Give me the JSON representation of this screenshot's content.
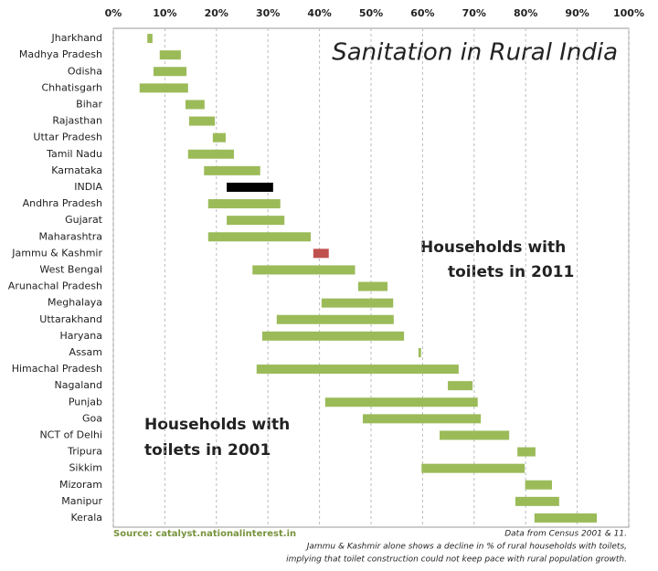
{
  "chart_data": {
    "type": "range-bar",
    "title": "Sanitation in Rural India",
    "annotations": [
      "Households with",
      "toilets in 2011",
      "Households with",
      "toilets in 2001"
    ],
    "source": "Source: catalyst.nationalinterest.in",
    "notes": [
      "Data from Census 2001 & 11.",
      "Jammu & Kashmir alone shows a decline in % of rural households with toilets,",
      "implying that toilet construction could not keep pace with rural population growth."
    ],
    "categories": [
      "Jharkhand",
      "Madhya Pradesh",
      "Odisha",
      "Chhatisgarh",
      "Bihar",
      "Rajasthan",
      "Uttar Pradesh",
      "Tamil Nadu",
      "Karnataka",
      "INDIA",
      "Andhra Pradesh",
      "Gujarat",
      "Maharashtra",
      "Jammu & Kashmir",
      "West Bengal",
      "Arunachal Pradesh",
      "Meghalaya",
      "Uttarakhand",
      "Haryana",
      "Assam",
      "Himachal Pradesh",
      "Nagaland",
      "Punjab",
      "Goa",
      "NCT of Delhi",
      "Tripura",
      "Sikkim",
      "Mizoram",
      "Manipur",
      "Kerala"
    ],
    "from": [
      6.6,
      9.0,
      7.8,
      5.1,
      14.0,
      14.7,
      19.3,
      14.5,
      17.6,
      22.0,
      18.4,
      22.0,
      18.4,
      41.8,
      27.0,
      47.5,
      40.4,
      31.7,
      28.9,
      59.2,
      27.8,
      64.9,
      41.1,
      48.4,
      63.3,
      78.4,
      59.8,
      79.9,
      78.0,
      81.7
    ],
    "to": [
      7.6,
      13.1,
      14.2,
      14.5,
      17.7,
      19.7,
      21.8,
      23.4,
      28.5,
      31.0,
      32.4,
      33.2,
      38.3,
      38.8,
      46.9,
      53.2,
      54.3,
      54.4,
      56.4,
      59.7,
      67.0,
      69.7,
      70.7,
      71.3,
      76.8,
      81.9,
      79.8,
      85.1,
      86.5,
      93.8
    ],
    "bar_colors": [
      "#9bbb59",
      "#9bbb59",
      "#9bbb59",
      "#9bbb59",
      "#9bbb59",
      "#9bbb59",
      "#9bbb59",
      "#9bbb59",
      "#9bbb59",
      "#000000",
      "#9bbb59",
      "#9bbb59",
      "#9bbb59",
      "#c0504d",
      "#9bbb59",
      "#9bbb59",
      "#9bbb59",
      "#9bbb59",
      "#9bbb59",
      "#9bbb59",
      "#9bbb59",
      "#9bbb59",
      "#9bbb59",
      "#9bbb59",
      "#9bbb59",
      "#9bbb59",
      "#9bbb59",
      "#9bbb59",
      "#9bbb59",
      "#9bbb59"
    ],
    "xlim": [
      0,
      100
    ],
    "xticks": [
      {
        "value": 0,
        "label": "0%"
      },
      {
        "value": 10,
        "label": "10%"
      },
      {
        "value": 20,
        "label": "20%"
      },
      {
        "value": 30,
        "label": "30%"
      },
      {
        "value": 40,
        "label": "40%"
      },
      {
        "value": 50,
        "label": "50%"
      },
      {
        "value": 60,
        "label": "60%"
      },
      {
        "value": 70,
        "label": "70%"
      },
      {
        "value": 80,
        "label": "80%"
      },
      {
        "value": 90,
        "label": "90%"
      },
      {
        "value": 100,
        "label": "100%"
      }
    ],
    "grid": true
  }
}
